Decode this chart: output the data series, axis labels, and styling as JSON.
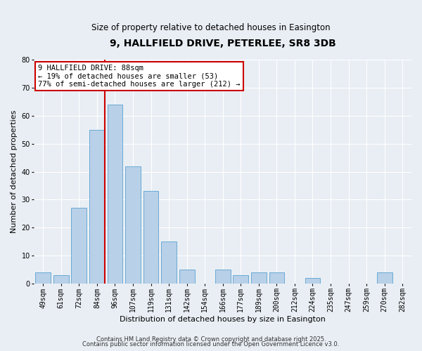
{
  "title": "9, HALLFIELD DRIVE, PETERLEE, SR8 3DB",
  "subtitle": "Size of property relative to detached houses in Easington",
  "xlabel": "Distribution of detached houses by size in Easington",
  "ylabel": "Number of detached properties",
  "bar_labels": [
    "49sqm",
    "61sqm",
    "72sqm",
    "84sqm",
    "96sqm",
    "107sqm",
    "119sqm",
    "131sqm",
    "142sqm",
    "154sqm",
    "166sqm",
    "177sqm",
    "189sqm",
    "200sqm",
    "212sqm",
    "224sqm",
    "235sqm",
    "247sqm",
    "259sqm",
    "270sqm",
    "282sqm"
  ],
  "bar_values": [
    4,
    3,
    27,
    55,
    64,
    42,
    33,
    15,
    5,
    0,
    5,
    3,
    4,
    4,
    0,
    2,
    0,
    0,
    0,
    4,
    0
  ],
  "bar_color": "#b8d0e8",
  "bar_edge_color": "#6aaad4",
  "vline_color": "#cc0000",
  "ylim": [
    0,
    80
  ],
  "yticks": [
    0,
    10,
    20,
    30,
    40,
    50,
    60,
    70,
    80
  ],
  "annotation_line1": "9 HALLFIELD DRIVE: 88sqm",
  "annotation_line2": "← 19% of detached houses are smaller (53)",
  "annotation_line3": "77% of semi-detached houses are larger (212) →",
  "annotation_box_color": "#ffffff",
  "annotation_box_edge": "#cc0000",
  "footer1": "Contains HM Land Registry data © Crown copyright and database right 2025.",
  "footer2": "Contains public sector information licensed under the Open Government Licence v3.0.",
  "background_color": "#e8eef4",
  "grid_color": "#ffffff",
  "title_fontsize": 10,
  "subtitle_fontsize": 8.5,
  "axis_label_fontsize": 8,
  "tick_fontsize": 7,
  "annotation_fontsize": 7.5,
  "footer_fontsize": 6
}
